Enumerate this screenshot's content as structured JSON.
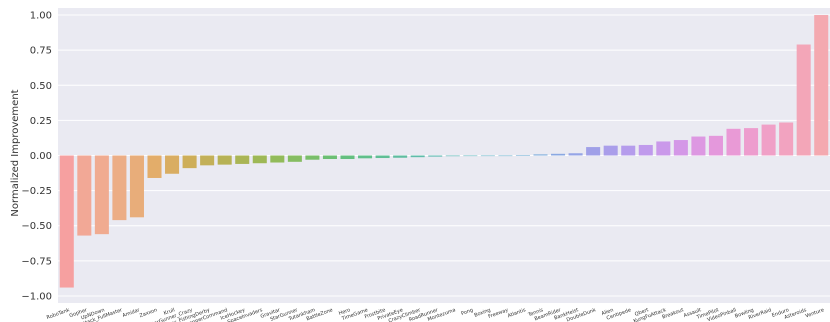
{
  "chart_data": {
    "type": "bar",
    "title": "",
    "xlabel": "",
    "ylabel": "Normalized Improvement",
    "ylim": [
      -1.05,
      1.05
    ],
    "yticks": [
      -1.0,
      -0.75,
      -0.5,
      -0.25,
      0.0,
      0.25,
      0.5,
      0.75,
      1.0
    ],
    "ytick_labels": [
      "−1.00",
      "−0.75",
      "−0.50",
      "−0.25",
      "0.00",
      "0.25",
      "0.50",
      "0.75",
      "1.00"
    ],
    "grid": true,
    "background": "#eaeaf2",
    "categories": [
      "RoboTank",
      "Gopher",
      "UpNDown",
      "DemonAttack_FullMaster",
      "Amidar",
      "Zaxxon",
      "Krull",
      "StarGunner_Crazy",
      "IceHockey_FishingDerby",
      "ChopperCommand",
      "IceHockey",
      "SpaceInvaders",
      "Gravitar",
      "StarGunner",
      "Tutankham",
      "BattleZone",
      "Hero",
      "TimeGame",
      "Frostbite",
      "PrivateEye",
      "CrazyClimber",
      "RoadRunner",
      "Montezuma",
      "Pong",
      "Boxing",
      "Freeway",
      "Atlantis",
      "Tennis",
      "BeamRider",
      "BankHeist",
      "DoubleDunk",
      "Alien",
      "Centipede",
      "Qbert",
      "KungFuAttack",
      "Breakout",
      "Assault",
      "TimePilot",
      "VideoPinball",
      "Bowling",
      "RiverRaid",
      "Enduro",
      "Asteroids",
      "Venture"
    ],
    "values": [
      -0.94,
      -0.57,
      -0.56,
      -0.46,
      -0.44,
      -0.16,
      -0.13,
      -0.09,
      -0.07,
      -0.065,
      -0.06,
      -0.055,
      -0.05,
      -0.045,
      -0.03,
      -0.025,
      -0.025,
      -0.02,
      -0.018,
      -0.016,
      -0.012,
      -0.008,
      -0.005,
      -0.003,
      -0.002,
      0.0,
      0.003,
      0.008,
      0.012,
      0.016,
      0.06,
      0.07,
      0.07,
      0.075,
      0.1,
      0.11,
      0.135,
      0.14,
      0.19,
      0.195,
      0.22,
      0.235,
      0.79,
      1.0
    ],
    "colors": [
      "#f6a0a0",
      "#f2a896",
      "#f0ab90",
      "#ecad85",
      "#e8ad7a",
      "#e3ad6a",
      "#d9ad62",
      "#ceae58",
      "#c3b058",
      "#b7b255",
      "#aab555",
      "#9eb856",
      "#92bb5a",
      "#86bd62",
      "#79be6a",
      "#6cbf74",
      "#64bf80",
      "#60bf8b",
      "#5fbe95",
      "#5fbda0",
      "#5fbcaa",
      "#61bbb3",
      "#63bab9",
      "#66b8c0",
      "#6ab6c8",
      "#6fb3cf",
      "#76b0d5",
      "#7facdc",
      "#8aa8e2",
      "#95a4e6",
      "#a0a0e8",
      "#aa9eea",
      "#b59cec",
      "#c09aec",
      "#ca99ea",
      "#d498e7",
      "#dd98e2",
      "#e498dc",
      "#e99ad6",
      "#ed9dce",
      "#f0a0c7",
      "#f2a3c0",
      "#f3a6b8",
      "#f4a9b0"
    ]
  }
}
